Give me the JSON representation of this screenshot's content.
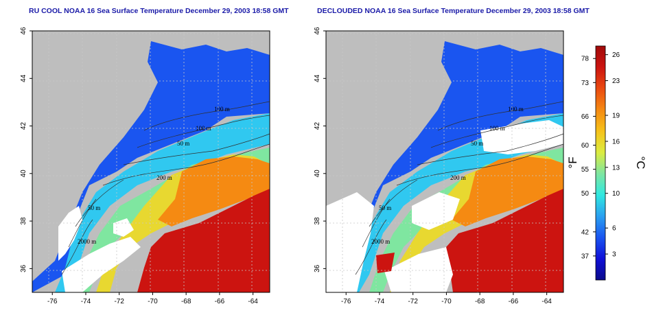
{
  "panels": [
    {
      "id": "left",
      "title": "RU COOL NOAA 16 Sea Surface Temperature December 29, 2003 18:58 GMT",
      "clouded": true
    },
    {
      "id": "right",
      "title": "DECLOUDED NOAA 16 Sea Surface Temperature December 29, 2003 18:58 GMT",
      "clouded": false
    }
  ],
  "map": {
    "x_ticks": [
      "-76",
      "-74",
      "-72",
      "-70",
      "-68",
      "-66",
      "-64"
    ],
    "y_ticks": [
      "46",
      "44",
      "42",
      "40",
      "38",
      "36"
    ],
    "lon_range": [
      -77.2,
      -63.0
    ],
    "lat_range": [
      35.0,
      46.0
    ],
    "contour_labels_left": [
      "100 m",
      "100 m",
      "50 m",
      "200 m",
      "50 m",
      "2000 m"
    ],
    "contour_labels_right": [
      "100 m",
      "100 m",
      "50 m",
      "200 m",
      "50 m",
      "2000 m"
    ]
  },
  "colorbar": {
    "unit_f": "°F",
    "unit_c": "°C",
    "f_ticks": [
      "78",
      "73",
      "66",
      "60",
      "55",
      "50",
      "42",
      "37"
    ],
    "c_ticks": [
      "26",
      "23",
      "19",
      "16",
      "13",
      "10",
      "6",
      "3"
    ],
    "range_c": [
      0,
      27
    ],
    "colors": [
      "#0b0b8a",
      "#1010d8",
      "#1a55f0",
      "#2aa0f0",
      "#30e8e0",
      "#7fe6a0",
      "#dcec40",
      "#f6c21a",
      "#f58a12",
      "#ea4a10",
      "#cc1410",
      "#a00a0a"
    ],
    "land_color": "#bebebe"
  }
}
